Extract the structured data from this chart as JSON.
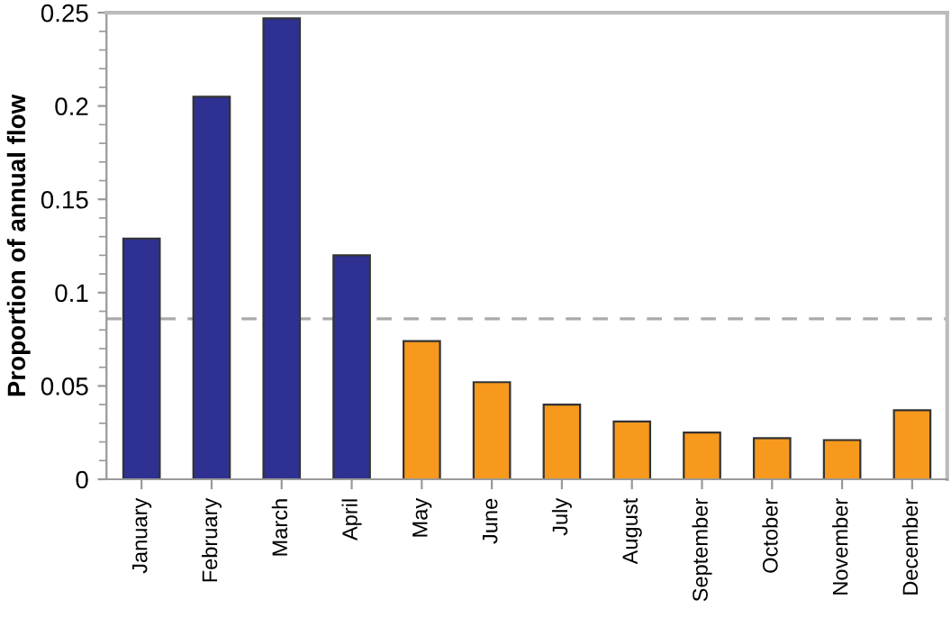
{
  "chart_data": {
    "type": "bar",
    "ylabel": "Proportion of annual flow",
    "categories": [
      "January",
      "February",
      "March",
      "April",
      "May",
      "June",
      "July",
      "August",
      "September",
      "October",
      "November",
      "December"
    ],
    "values": [
      0.129,
      0.205,
      0.247,
      0.12,
      0.074,
      0.052,
      0.04,
      0.031,
      0.025,
      0.022,
      0.021,
      0.037
    ],
    "colors": [
      "#2e3192",
      "#2e3192",
      "#2e3192",
      "#2e3192",
      "#f7991c",
      "#f7991c",
      "#f7991c",
      "#f7991c",
      "#f7991c",
      "#f7991c",
      "#f7991c",
      "#f7991c"
    ],
    "ylim": [
      0,
      0.25
    ],
    "yticks": [
      0,
      0.05,
      0.1,
      0.15,
      0.2,
      0.25
    ],
    "ref_lines": [
      {
        "axis": "y",
        "value": 0.086,
        "color": "#aaaaaa",
        "line_style": "dashed"
      }
    ],
    "grid": false
  }
}
